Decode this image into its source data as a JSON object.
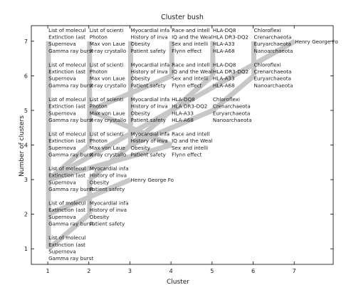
{
  "chart_data": {
    "type": "cluster-bush",
    "title": "Cluster bush",
    "xlabel": "Cluster",
    "ylabel": "Number of clusters",
    "xlim": [
      0.6,
      7.95
    ],
    "ylim": [
      0.55,
      7.45
    ],
    "xticks": [
      "1",
      "2",
      "3",
      "4",
      "5",
      "6",
      "7"
    ],
    "yticks": [
      "1",
      "2",
      "3",
      "4",
      "5",
      "6",
      "7"
    ],
    "grid": false,
    "band_color": "#c8c8c8",
    "clusters": {
      "A": [
        "List of molecul",
        "Extinction (ast",
        "Supernova",
        "Gamma ray burst"
      ],
      "B": [
        "List of scienti",
        "Photon",
        "Max von Laue",
        "X-ray crystallo"
      ],
      "C": [
        "Myocardial infa",
        "History of inva",
        "Obesity",
        "Patient safety"
      ],
      "D": [
        "Race and intell",
        "IQ and the Weal",
        "Sex and intelli",
        "Flynn effect"
      ],
      "E": [
        "HLA-DQ8",
        "HLA DR3-DQ2",
        "HLA-A33",
        "HLA-A68"
      ],
      "F": [
        "Chloroflexi",
        "Crenarchaeota",
        "Euryarchaeota",
        "Nanoarchaeota"
      ],
      "G": [
        "Henry George Fo"
      ],
      "BD": [
        "List of scienti",
        "Photon",
        "Max von Laue",
        "X-ray crystallo",
        "Race and intell",
        "IQ and the Weal",
        "Sex and intelli",
        "Flynn effect"
      ],
      "CE": [
        "Myocardial infa",
        "History of inva",
        "Obesity",
        "Patient safety",
        "HLA-DQ8",
        "HLA DR3-DQ2",
        "HLA-A33",
        "HLA-A68"
      ],
      "CEF": [
        "Myocardial infa",
        "History of inva",
        "Obesity",
        "Patient safety",
        "HLA-DQ8",
        "HLA DR3-DQ2",
        "HLA-A33",
        "HLA-A68",
        "Chloroflexi",
        "Crenarchaeota",
        "Euryarchaeota",
        "Nanoarchaeota"
      ],
      "ABD": [
        "List of molecul",
        "Extinction (ast",
        "Supernova",
        "Gamma ray burst",
        "List of scienti",
        "Photon",
        "Max von Laue",
        "X-ray crystallo",
        "Race and intell",
        "IQ and the Weal",
        "Sex and intelli",
        "Flynn effect"
      ],
      "ALL": [
        "List of molecul",
        "Extinction (ast",
        "Supernova",
        "Gamma ray burst",
        "List of scienti",
        "Photon",
        "Max von Laue",
        "X-ray crystallo",
        "Myocardial infa",
        "History of inva",
        "Obesity",
        "Patient safety",
        "Race and intell",
        "IQ and the Weal",
        "Sex and intelli",
        "Flynn effect",
        "HLA-DQ8",
        "HLA DR3-DQ2",
        "HLA-A33",
        "HLA-A68",
        "Chloroflexi",
        "Crenarchaeota",
        "Euryarchaeota",
        "Nanoarchaeota",
        "Henry George Fo"
      ]
    },
    "levels": [
      {
        "k": 7,
        "clusters": [
          "A",
          "B",
          "C",
          "D",
          "E",
          "F",
          "G"
        ]
      },
      {
        "k": 6,
        "clusters": [
          "A",
          "B",
          "C",
          "D",
          "E",
          "F"
        ]
      },
      {
        "k": 5,
        "clusters": [
          "A",
          "B",
          "C",
          "E",
          "F"
        ]
      },
      {
        "k": 4,
        "clusters": [
          "A",
          "B",
          "C",
          "D"
        ]
      },
      {
        "k": 3,
        "clusters": [
          "A",
          "C",
          "G"
        ]
      },
      {
        "k": 2,
        "clusters": [
          "A",
          "C"
        ]
      },
      {
        "k": 1,
        "clusters": [
          "A"
        ]
      }
    ],
    "edges": [
      {
        "from": [
          1,
          1
        ],
        "to": [
          1,
          2
        ]
      },
      {
        "from": [
          1,
          1
        ],
        "to": [
          2,
          2
        ]
      },
      {
        "from": [
          1,
          2
        ],
        "to": [
          1,
          3
        ]
      },
      {
        "from": [
          2,
          2
        ],
        "to": [
          2,
          3
        ]
      },
      {
        "from": [
          1,
          2
        ],
        "to": [
          3,
          3
        ]
      },
      {
        "from": [
          1,
          3
        ],
        "to": [
          1,
          4
        ]
      },
      {
        "from": [
          1,
          3
        ],
        "to": [
          2,
          4
        ]
      },
      {
        "from": [
          1,
          3
        ],
        "to": [
          4,
          4
        ]
      },
      {
        "from": [
          2,
          3
        ],
        "to": [
          3,
          4
        ]
      },
      {
        "from": [
          1,
          4
        ],
        "to": [
          1,
          5
        ]
      },
      {
        "from": [
          2,
          4
        ],
        "to": [
          2,
          5
        ]
      },
      {
        "from": [
          4,
          4
        ],
        "to": [
          2,
          5
        ]
      },
      {
        "from": [
          3,
          4
        ],
        "to": [
          3,
          5
        ]
      },
      {
        "from": [
          3,
          4
        ],
        "to": [
          4,
          5
        ]
      },
      {
        "from": [
          3,
          4
        ],
        "to": [
          5,
          5
        ]
      },
      {
        "from": [
          1,
          5
        ],
        "to": [
          1,
          6
        ]
      },
      {
        "from": [
          2,
          5
        ],
        "to": [
          2,
          6
        ]
      },
      {
        "from": [
          2,
          5
        ],
        "to": [
          4,
          6
        ]
      },
      {
        "from": [
          3,
          5
        ],
        "to": [
          3,
          6
        ]
      },
      {
        "from": [
          4,
          5
        ],
        "to": [
          5,
          6
        ]
      },
      {
        "from": [
          5,
          5
        ],
        "to": [
          6,
          6
        ]
      },
      {
        "from": [
          1,
          6
        ],
        "to": [
          1,
          7
        ]
      },
      {
        "from": [
          2,
          6
        ],
        "to": [
          2,
          7
        ]
      },
      {
        "from": [
          3,
          6
        ],
        "to": [
          3,
          7
        ]
      },
      {
        "from": [
          4,
          6
        ],
        "to": [
          4,
          7
        ]
      },
      {
        "from": [
          5,
          6
        ],
        "to": [
          5,
          7
        ]
      },
      {
        "from": [
          6,
          6
        ],
        "to": [
          6,
          7
        ]
      },
      {
        "from": [
          1,
          3
        ],
        "to": [
          7,
          7
        ]
      }
    ]
  }
}
